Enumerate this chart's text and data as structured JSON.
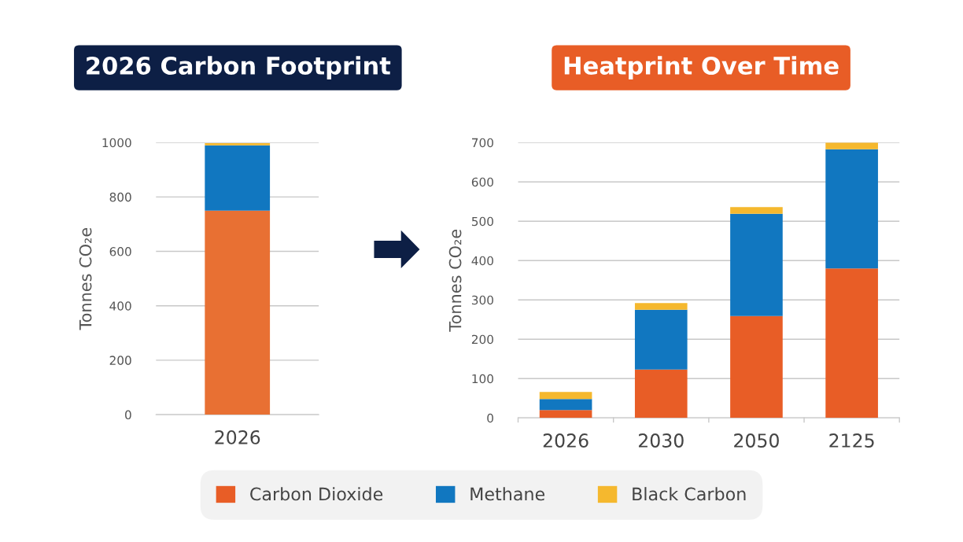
{
  "chart_data": [
    {
      "type": "bar",
      "title": "2026 Carbon Footprint",
      "ylabel": "Tonnes CO₂e",
      "categories": [
        "2026"
      ],
      "stacked": true,
      "ylim": [
        0,
        1000
      ],
      "yticks": [
        0,
        200,
        400,
        600,
        800,
        1000
      ],
      "grid": "y",
      "series": [
        {
          "color": "#e87033",
          "values": [
            750
          ]
        },
        {
          "color": "#1177c0",
          "values": [
            240
          ]
        },
        {
          "color": "#f5b82e",
          "values": [
            8
          ]
        }
      ]
    },
    {
      "type": "bar",
      "title": "Heatprint Over Time",
      "ylabel": "Tonnes CO₂e",
      "categories": [
        "2026",
        "2030",
        "2050",
        "2125"
      ],
      "stacked": true,
      "ylim": [
        0,
        700
      ],
      "yticks": [
        0,
        100,
        200,
        300,
        400,
        500,
        600,
        700
      ],
      "grid": "y",
      "legend": "bottom",
      "series": [
        {
          "name": "Carbon Dioxide",
          "color": "#e85d26",
          "values": [
            20,
            123,
            259,
            380
          ]
        },
        {
          "name": "Methane",
          "color": "#1177c0",
          "values": [
            28,
            152,
            260,
            303
          ]
        },
        {
          "name": "Black Carbon",
          "color": "#f5b82e",
          "values": [
            18,
            17,
            17,
            17
          ]
        }
      ]
    }
  ]
}
